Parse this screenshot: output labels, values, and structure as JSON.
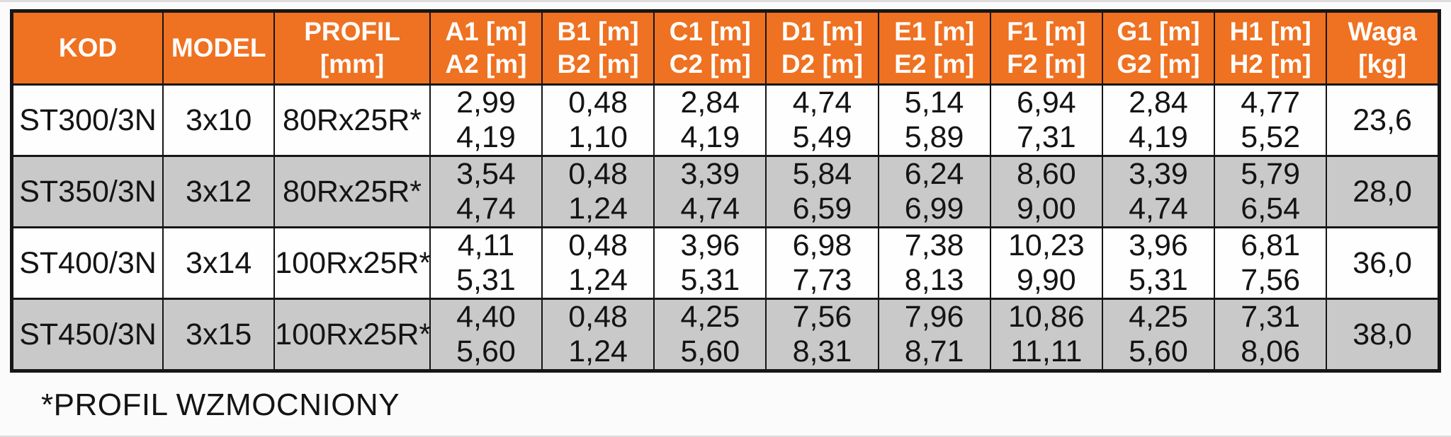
{
  "colors": {
    "header_bg": "#EF7122",
    "header_text": "#FEFCF8",
    "row_bg": "#FEFEFE",
    "row_alt_bg": "#C9C9C9",
    "border": "#161616",
    "text": "#141414",
    "page_bg": "#FBFBFB"
  },
  "table": {
    "columns": [
      {
        "id": "kod",
        "lines": [
          "KOD"
        ]
      },
      {
        "id": "model",
        "lines": [
          "MODEL"
        ]
      },
      {
        "id": "profil",
        "lines": [
          "PROFIL",
          "[mm]"
        ]
      },
      {
        "id": "a",
        "lines": [
          "A1 [m]",
          "A2 [m]"
        ]
      },
      {
        "id": "b",
        "lines": [
          "B1 [m]",
          "B2 [m]"
        ]
      },
      {
        "id": "c",
        "lines": [
          "C1 [m]",
          "C2 [m]"
        ]
      },
      {
        "id": "d",
        "lines": [
          "D1 [m]",
          "D2 [m]"
        ]
      },
      {
        "id": "e",
        "lines": [
          "E1 [m]",
          "E2 [m]"
        ]
      },
      {
        "id": "f",
        "lines": [
          "F1 [m]",
          "F2 [m]"
        ]
      },
      {
        "id": "g",
        "lines": [
          "G1 [m]",
          "G2 [m]"
        ]
      },
      {
        "id": "h",
        "lines": [
          "H1 [m]",
          "H2 [m]"
        ]
      },
      {
        "id": "waga",
        "lines": [
          "Waga",
          "[kg]"
        ]
      }
    ],
    "rows": [
      {
        "kod": "ST300/3N",
        "model": "3x10",
        "profil": "80Rx25R*",
        "a": [
          "2,99",
          "4,19"
        ],
        "b": [
          "0,48",
          "1,10"
        ],
        "c": [
          "2,84",
          "4,19"
        ],
        "d": [
          "4,74",
          "5,49"
        ],
        "e": [
          "5,14",
          "5,89"
        ],
        "f": [
          "6,94",
          "7,31"
        ],
        "g": [
          "2,84",
          "4,19"
        ],
        "h": [
          "4,77",
          "5,52"
        ],
        "waga": "23,6"
      },
      {
        "kod": "ST350/3N",
        "model": "3x12",
        "profil": "80Rx25R*",
        "a": [
          "3,54",
          "4,74"
        ],
        "b": [
          "0,48",
          "1,24"
        ],
        "c": [
          "3,39",
          "4,74"
        ],
        "d": [
          "5,84",
          "6,59"
        ],
        "e": [
          "6,24",
          "6,99"
        ],
        "f": [
          "8,60",
          "9,00"
        ],
        "g": [
          "3,39",
          "4,74"
        ],
        "h": [
          "5,79",
          "6,54"
        ],
        "waga": "28,0"
      },
      {
        "kod": "ST400/3N",
        "model": "3x14",
        "profil": "100Rx25R*",
        "a": [
          "4,11",
          "5,31"
        ],
        "b": [
          "0,48",
          "1,24"
        ],
        "c": [
          "3,96",
          "5,31"
        ],
        "d": [
          "6,98",
          "7,73"
        ],
        "e": [
          "7,38",
          "8,13"
        ],
        "f": [
          "10,23",
          "9,90"
        ],
        "g": [
          "3,96",
          "5,31"
        ],
        "h": [
          "6,81",
          "7,56"
        ],
        "waga": "36,0"
      },
      {
        "kod": "ST450/3N",
        "model": "3x15",
        "profil": "100Rx25R*",
        "a": [
          "4,40",
          "5,60"
        ],
        "b": [
          "0,48",
          "1,24"
        ],
        "c": [
          "4,25",
          "5,60"
        ],
        "d": [
          "7,56",
          "8,31"
        ],
        "e": [
          "7,96",
          "8,71"
        ],
        "f": [
          "10,86",
          "11,11"
        ],
        "g": [
          "4,25",
          "5,60"
        ],
        "h": [
          "7,31",
          "8,06"
        ],
        "waga": "38,0"
      }
    ]
  },
  "footnote": "*PROFIL WZMOCNIONY"
}
